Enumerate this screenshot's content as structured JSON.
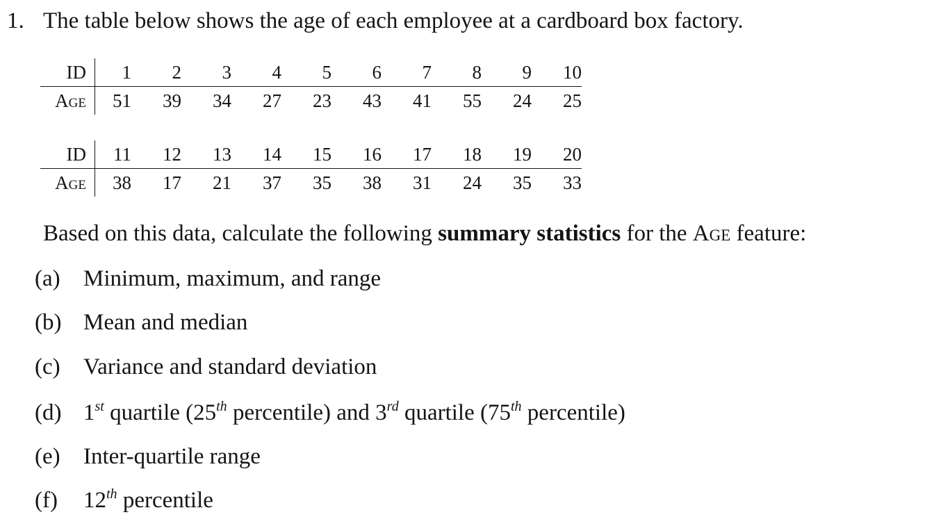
{
  "question": {
    "number": "1.",
    "text": "The table below shows the age of each employee at a cardboard box factory."
  },
  "tables": [
    {
      "id_label": "ID",
      "age_label": "Age",
      "ids": [
        "1",
        "2",
        "3",
        "4",
        "5",
        "6",
        "7",
        "8",
        "9",
        "10"
      ],
      "ages": [
        "51",
        "39",
        "34",
        "27",
        "23",
        "43",
        "41",
        "55",
        "24",
        "25"
      ]
    },
    {
      "id_label": "ID",
      "age_label": "Age",
      "ids": [
        "11",
        "12",
        "13",
        "14",
        "15",
        "16",
        "17",
        "18",
        "19",
        "20"
      ],
      "ages": [
        "38",
        "17",
        "21",
        "37",
        "35",
        "38",
        "31",
        "24",
        "35",
        "33"
      ]
    }
  ],
  "prompt": {
    "before": "Based on this data, calculate the following ",
    "bold": "summary statistics",
    "middle": " for the ",
    "feature": "Age",
    "after": " feature:"
  },
  "items": [
    {
      "label": "(a)",
      "text": "Minimum, maximum, and range"
    },
    {
      "label": "(b)",
      "text": "Mean and median"
    },
    {
      "label": "(c)",
      "text": "Variance and standard deviation"
    },
    {
      "label": "(d)",
      "parts": [
        "1",
        "st",
        " quartile (25",
        "th",
        " percentile) and 3",
        "rd",
        " quartile (75",
        "th",
        " percentile)"
      ]
    },
    {
      "label": "(e)",
      "text": "Inter-quartile range"
    },
    {
      "label": "(f)",
      "parts": [
        "12",
        "th",
        " percentile"
      ]
    }
  ]
}
